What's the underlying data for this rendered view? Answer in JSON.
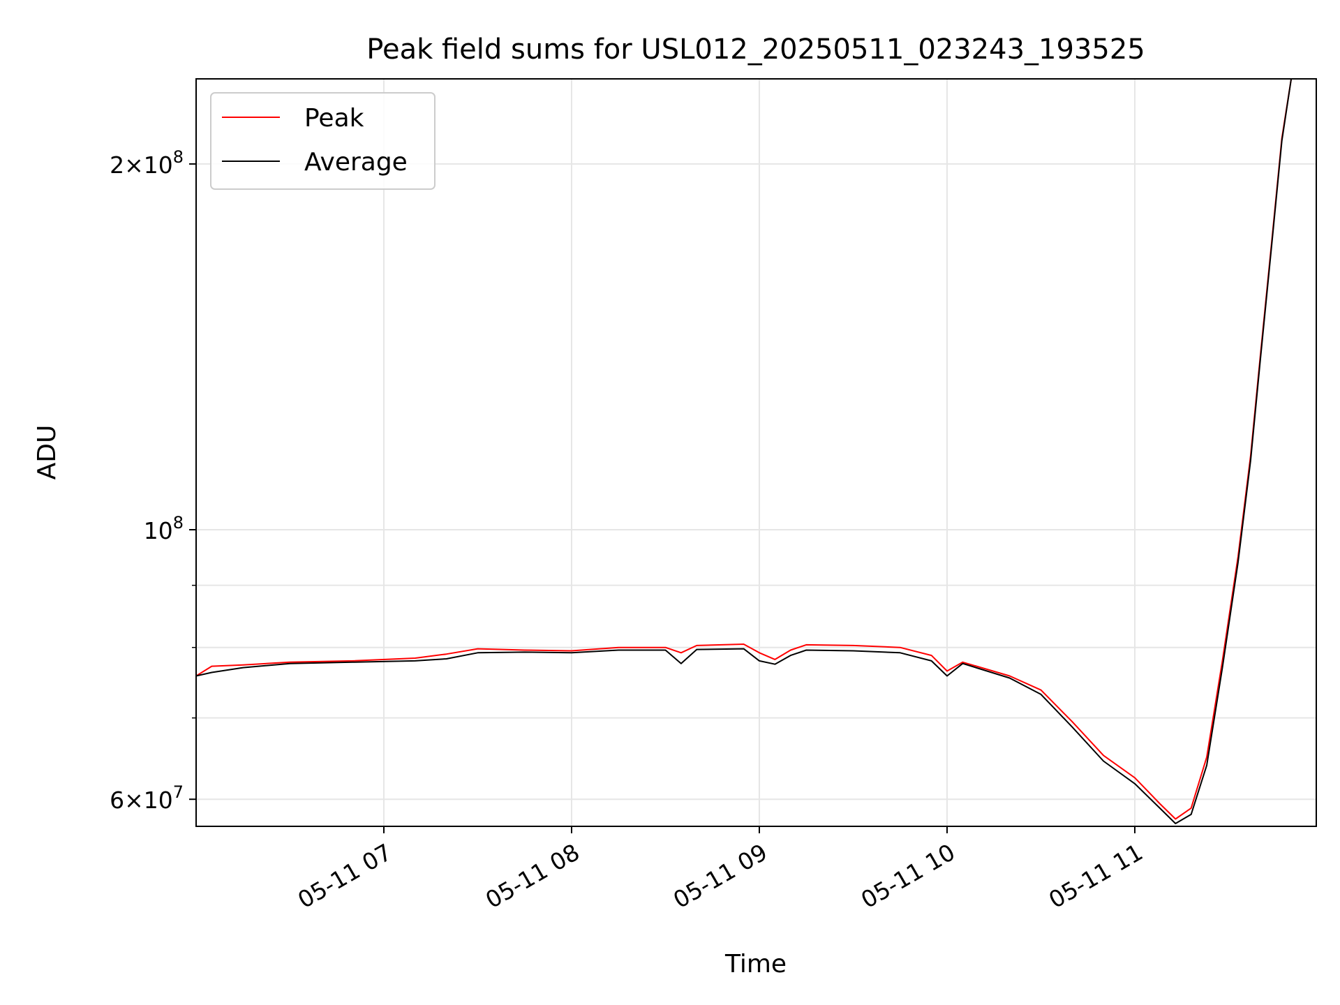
{
  "chart_data": {
    "type": "line",
    "title": "Peak field sums for USL012_20250511_023243_193525",
    "xlabel": "Time",
    "ylabel": "ADU",
    "x_ticks": [
      "05-11 07",
      "05-11 08",
      "05-11 09",
      "05-11 10",
      "05-11 11"
    ],
    "y_ticks": [
      {
        "value": 60000000,
        "mantissa": "6",
        "base": "×10",
        "exp": "7"
      },
      {
        "value": 100000000,
        "mantissa": "",
        "base": "10",
        "exp": "8"
      },
      {
        "value": 200000000,
        "mantissa": "2",
        "base": "×10",
        "exp": "8"
      }
    ],
    "y_minor_ticks": [
      70000000,
      80000000,
      90000000
    ],
    "xlim": [
      "2025-05-11 06:00",
      "2025-05-11 11:58"
    ],
    "ylim": [
      57000000,
      235000000
    ],
    "yscale": "log",
    "grid": true,
    "legend_position": "top-left",
    "series": [
      {
        "name": "Peak",
        "color": "#ff0000",
        "points": [
          [
            "2025-05-11 06:00",
            75800000
          ],
          [
            "2025-05-11 06:05",
            77200000
          ],
          [
            "2025-05-11 06:15",
            77400000
          ],
          [
            "2025-05-11 06:30",
            77800000
          ],
          [
            "2025-05-11 06:50",
            78000000
          ],
          [
            "2025-05-11 07:10",
            78400000
          ],
          [
            "2025-05-11 07:20",
            79000000
          ],
          [
            "2025-05-11 07:30",
            79800000
          ],
          [
            "2025-05-11 07:45",
            79600000
          ],
          [
            "2025-05-11 08:00",
            79500000
          ],
          [
            "2025-05-11 08:15",
            80000000
          ],
          [
            "2025-05-11 08:30",
            80000000
          ],
          [
            "2025-05-11 08:35",
            79200000
          ],
          [
            "2025-05-11 08:40",
            80300000
          ],
          [
            "2025-05-11 08:55",
            80500000
          ],
          [
            "2025-05-11 09:00",
            79200000
          ],
          [
            "2025-05-11 09:05",
            78200000
          ],
          [
            "2025-05-11 09:10",
            79600000
          ],
          [
            "2025-05-11 09:15",
            80400000
          ],
          [
            "2025-05-11 09:30",
            80300000
          ],
          [
            "2025-05-11 09:45",
            80000000
          ],
          [
            "2025-05-11 09:55",
            78800000
          ],
          [
            "2025-05-11 10:00",
            76500000
          ],
          [
            "2025-05-11 10:05",
            77800000
          ],
          [
            "2025-05-11 10:20",
            75800000
          ],
          [
            "2025-05-11 10:30",
            73800000
          ],
          [
            "2025-05-11 10:40",
            69500000
          ],
          [
            "2025-05-11 10:50",
            65200000
          ],
          [
            "2025-05-11 11:00",
            62500000
          ],
          [
            "2025-05-11 11:08",
            59500000
          ],
          [
            "2025-05-11 11:13",
            57800000
          ],
          [
            "2025-05-11 11:18",
            59000000
          ],
          [
            "2025-05-11 11:23",
            65000000
          ],
          [
            "2025-05-11 11:28",
            78000000
          ],
          [
            "2025-05-11 11:33",
            95000000
          ],
          [
            "2025-05-11 11:37",
            115000000
          ],
          [
            "2025-05-11 11:40",
            138000000
          ],
          [
            "2025-05-11 11:44",
            175000000
          ],
          [
            "2025-05-11 11:47",
            210000000
          ],
          [
            "2025-05-11 11:50",
            235000000
          ]
        ]
      },
      {
        "name": "Average",
        "color": "#000000",
        "points": [
          [
            "2025-05-11 06:00",
            75800000
          ],
          [
            "2025-05-11 06:05",
            76300000
          ],
          [
            "2025-05-11 06:15",
            77000000
          ],
          [
            "2025-05-11 06:30",
            77600000
          ],
          [
            "2025-05-11 06:50",
            77800000
          ],
          [
            "2025-05-11 07:10",
            78000000
          ],
          [
            "2025-05-11 07:20",
            78300000
          ],
          [
            "2025-05-11 07:30",
            79200000
          ],
          [
            "2025-05-11 07:45",
            79300000
          ],
          [
            "2025-05-11 08:00",
            79200000
          ],
          [
            "2025-05-11 08:15",
            79600000
          ],
          [
            "2025-05-11 08:30",
            79600000
          ],
          [
            "2025-05-11 08:35",
            77600000
          ],
          [
            "2025-05-11 08:40",
            79700000
          ],
          [
            "2025-05-11 08:55",
            79800000
          ],
          [
            "2025-05-11 09:00",
            78000000
          ],
          [
            "2025-05-11 09:05",
            77500000
          ],
          [
            "2025-05-11 09:10",
            78800000
          ],
          [
            "2025-05-11 09:15",
            79600000
          ],
          [
            "2025-05-11 09:30",
            79500000
          ],
          [
            "2025-05-11 09:45",
            79200000
          ],
          [
            "2025-05-11 09:55",
            78000000
          ],
          [
            "2025-05-11 10:00",
            75800000
          ],
          [
            "2025-05-11 10:05",
            77600000
          ],
          [
            "2025-05-11 10:20",
            75500000
          ],
          [
            "2025-05-11 10:30",
            73200000
          ],
          [
            "2025-05-11 10:40",
            68800000
          ],
          [
            "2025-05-11 10:50",
            64500000
          ],
          [
            "2025-05-11 11:00",
            61800000
          ],
          [
            "2025-05-11 11:08",
            59000000
          ],
          [
            "2025-05-11 11:13",
            57300000
          ],
          [
            "2025-05-11 11:18",
            58300000
          ],
          [
            "2025-05-11 11:23",
            64000000
          ],
          [
            "2025-05-11 11:28",
            77000000
          ],
          [
            "2025-05-11 11:33",
            94000000
          ],
          [
            "2025-05-11 11:37",
            114000000
          ],
          [
            "2025-05-11 11:40",
            137000000
          ],
          [
            "2025-05-11 11:44",
            174000000
          ],
          [
            "2025-05-11 11:47",
            209000000
          ],
          [
            "2025-05-11 11:50",
            235000000
          ]
        ]
      }
    ]
  }
}
